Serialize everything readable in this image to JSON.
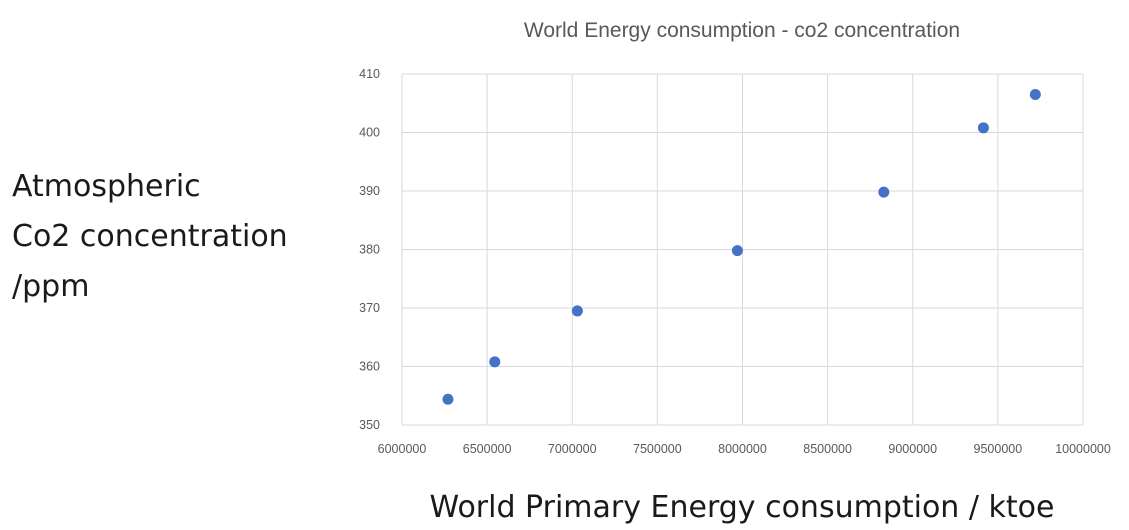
{
  "chart_data": {
    "type": "scatter",
    "title": "World Energy consumption - co2 concentration",
    "xlabel": "World Primary Energy consumption / ktoe",
    "ylabel_lines": [
      "Atmospheric",
      "Co2 concentration",
      "/ppm"
    ],
    "xlim": [
      6000000,
      10000000
    ],
    "ylim": [
      350,
      410
    ],
    "x_ticks": [
      "6000000",
      "6500000",
      "7000000",
      "7500000",
      "8000000",
      "8500000",
      "9000000",
      "9500000",
      "10000000"
    ],
    "y_ticks": [
      "350",
      "360",
      "370",
      "380",
      "390",
      "400",
      "410"
    ],
    "grid": true,
    "color": "#4472c4",
    "points": [
      {
        "x": 6270000,
        "y": 354.4
      },
      {
        "x": 6545000,
        "y": 360.8
      },
      {
        "x": 7030000,
        "y": 369.5
      },
      {
        "x": 7970000,
        "y": 379.8
      },
      {
        "x": 8830000,
        "y": 389.8
      },
      {
        "x": 9415000,
        "y": 400.8
      },
      {
        "x": 9720000,
        "y": 406.5
      }
    ]
  }
}
